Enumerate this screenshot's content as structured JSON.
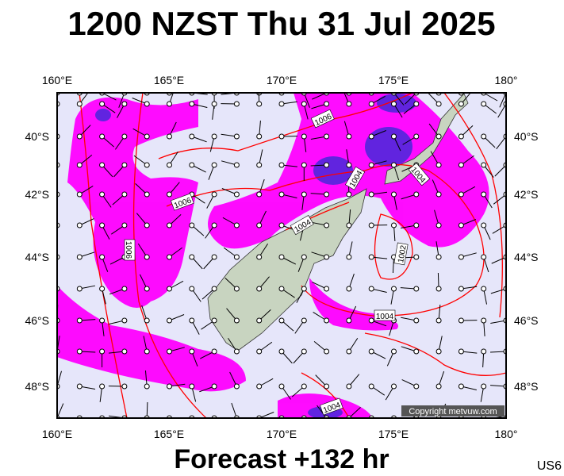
{
  "title": "1200 NZST Thu 31 Jul 2025",
  "longitude_labels": [
    "160°E",
    "165°E",
    "170°E",
    "175°E",
    "180°"
  ],
  "latitude_labels": [
    "40°S",
    "42°S",
    "44°S",
    "46°S",
    "48°S"
  ],
  "isobar_labels": [
    "1006",
    "1004",
    "1004",
    "1006",
    "1006",
    "1004",
    "1002",
    "1004",
    "1004"
  ],
  "copyright": "Copyright metvuw.com",
  "footer": "Forecast +132 hr",
  "code": "US6"
}
